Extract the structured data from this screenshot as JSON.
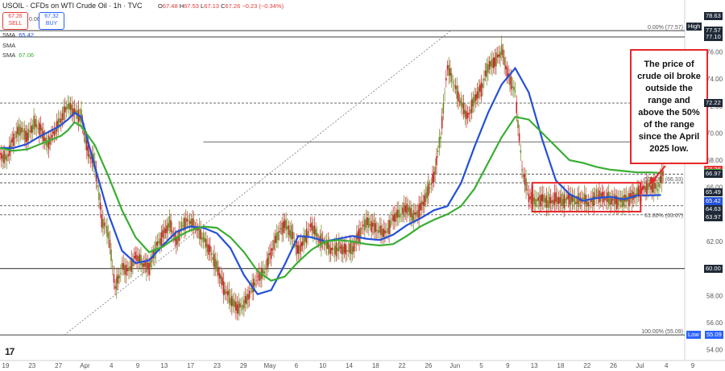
{
  "header": {
    "symbol": "USOIL · CFDs on WTI Crude Oil · 1h · TVC",
    "ohlc": {
      "o_label": "O",
      "o": "67.48",
      "h_label": "H",
      "h": "67.53",
      "l_label": "L",
      "l": "67.13",
      "c_label": "C",
      "c": "67.26",
      "change": "−0.23 (−0.34%)"
    },
    "sell": {
      "price": "67.26",
      "label": "SELL"
    },
    "buy": {
      "price": "67.32",
      "label": "BUY"
    },
    "spread": "0.06",
    "indicators": [
      {
        "name": "SMA",
        "value": "65.42"
      },
      {
        "name": "SMA",
        "value": ""
      },
      {
        "name": "SMA",
        "value": "67.06"
      }
    ]
  },
  "annotation": "The price of crude oil broke outside the range and above the 50% of the range since the April 2025 low.",
  "colors": {
    "fast_sma": "#2450d8",
    "slow_sma": "#3aad33",
    "candle_up": "#6e8c24",
    "candle_down": "#c8252c",
    "annotation": "#e8262a",
    "fib": "#777777"
  },
  "chart_data": {
    "type": "line",
    "title": "USOIL · CFDs on WTI Crude Oil · 1h · TVC",
    "ylim": [
      53.2,
      79.0
    ],
    "y_ticks": [
      54.0,
      56.0,
      58.0,
      60.0,
      62.0,
      64.0,
      66.0,
      68.0,
      70.0,
      72.0,
      74.0,
      76.0
    ],
    "y_tick_labels": [
      "54.00",
      "56.00",
      "58.00",
      "60.00",
      "62.00",
      "64.00",
      "66.00",
      "68.00",
      "70.00",
      "72.00",
      "74.00",
      "76.00"
    ],
    "x_ticks": [
      "19",
      "23",
      "27",
      "Apr",
      "4",
      "9",
      "13",
      "17",
      "23",
      "29",
      "May",
      "6",
      "10",
      "14",
      "18",
      "22",
      "26",
      "Jun",
      "5",
      "9",
      "13",
      "18",
      "22",
      "26",
      "Jul",
      "4",
      "9"
    ],
    "series": [
      {
        "name": "SMA",
        "style": "blue",
        "x": [
          0,
          2,
          4,
          6,
          8,
          9,
          10,
          11,
          12,
          14,
          16,
          18,
          20,
          22,
          24,
          26,
          28,
          30,
          32,
          34,
          36,
          38,
          40,
          42,
          44,
          46,
          48,
          50,
          52,
          54,
          56,
          58,
          60,
          62,
          64,
          66,
          68,
          70,
          72,
          74,
          76,
          78,
          80,
          82,
          84,
          86,
          88,
          90,
          92,
          94,
          96,
          97.5
        ],
        "y": [
          68.9,
          68.9,
          69.2,
          69.8,
          70.3,
          70.6,
          71.0,
          71.5,
          71.2,
          67.5,
          64.0,
          61.3,
          60.4,
          60.6,
          61.7,
          62.7,
          63.1,
          63.0,
          62.6,
          61.5,
          59.5,
          58.1,
          58.4,
          60.3,
          62.4,
          62.3,
          62.0,
          62.2,
          62.4,
          62.2,
          62.1,
          62.5,
          63.2,
          63.7,
          64.3,
          64.6,
          66.3,
          69.0,
          71.5,
          73.6,
          74.8,
          73.0,
          69.5,
          66.5,
          65.5,
          65.0,
          65.2,
          65.3,
          65.1,
          65.4,
          65.4,
          65.42
        ]
      },
      {
        "name": "SMA",
        "style": "green",
        "x": [
          0,
          2,
          4,
          6,
          8,
          9,
          10,
          11,
          12,
          14,
          16,
          18,
          20,
          22,
          24,
          26,
          28,
          30,
          32,
          34,
          36,
          38,
          40,
          42,
          44,
          46,
          48,
          50,
          52,
          54,
          56,
          58,
          60,
          62,
          64,
          66,
          68,
          70,
          72,
          74,
          76,
          78,
          80,
          82,
          84,
          86,
          88,
          90,
          92,
          94,
          96,
          97.5
        ],
        "y": [
          68.9,
          68.7,
          68.8,
          69.2,
          69.6,
          69.8,
          70.2,
          70.8,
          70.5,
          69.1,
          66.8,
          64.3,
          62.3,
          61.2,
          61.6,
          62.3,
          62.8,
          63.1,
          63.0,
          62.3,
          61.2,
          59.8,
          59.1,
          59.4,
          60.5,
          61.4,
          62.0,
          62.1,
          62.0,
          61.8,
          61.7,
          61.8,
          62.4,
          63.1,
          63.6,
          64.0,
          64.6,
          65.9,
          67.8,
          69.7,
          71.2,
          71.0,
          70.0,
          69.0,
          68.0,
          67.8,
          67.5,
          67.3,
          67.2,
          67.1,
          67.1,
          67.06
        ]
      },
      {
        "name": "Price",
        "style": "candles",
        "x": [
          0,
          1,
          2,
          3,
          4,
          5,
          6,
          7,
          8,
          9,
          10,
          11,
          12,
          13,
          14,
          15,
          16,
          17,
          18,
          19,
          20,
          21,
          22,
          23,
          24,
          25,
          26,
          27,
          28,
          29,
          30,
          31,
          32,
          33,
          34,
          35,
          36,
          37,
          38,
          39,
          40,
          41,
          42,
          43,
          44,
          45,
          46,
          47,
          48,
          49,
          50,
          51,
          52,
          53,
          54,
          55,
          56,
          57,
          58,
          59,
          60,
          61,
          62,
          63,
          64,
          65,
          66,
          67,
          68,
          69,
          70,
          71,
          72,
          73,
          74,
          75,
          76,
          77,
          78,
          79,
          80,
          81,
          82,
          83,
          84,
          85,
          86,
          87,
          88,
          89,
          90,
          91,
          92,
          93,
          94,
          95,
          96,
          97,
          98
        ],
        "y": [
          68.4,
          68.2,
          69.6,
          70.3,
          69.6,
          70.7,
          70.3,
          69.2,
          70.1,
          71.0,
          72.0,
          71.5,
          71.2,
          68.6,
          67.8,
          63.6,
          62.5,
          58.5,
          60.1,
          59.9,
          61.0,
          60.4,
          60.0,
          61.5,
          62.4,
          63.4,
          62.0,
          63.3,
          63.5,
          62.9,
          62.2,
          61.3,
          60.2,
          58.6,
          57.7,
          57.0,
          57.3,
          58.4,
          59.4,
          59.8,
          61.2,
          62.5,
          63.2,
          62.6,
          61.3,
          62.3,
          63.2,
          62.1,
          61.8,
          61.3,
          61.6,
          61.4,
          61.5,
          62.5,
          63.4,
          63.1,
          62.8,
          62.7,
          63.8,
          64.0,
          64.4,
          63.8,
          64.4,
          65.6,
          66.8,
          69.8,
          74.9,
          73.5,
          72.2,
          71.2,
          72.6,
          73.3,
          74.9,
          75.2,
          76.1,
          74.2,
          73.1,
          67.4,
          65.3,
          64.9,
          65.1,
          64.9,
          65.2,
          65.0,
          65.2,
          64.9,
          65.1,
          64.8,
          65.5,
          65.3,
          65.1,
          64.9,
          65.0,
          65.2,
          65.6,
          66.0,
          66.1,
          65.9,
          67.26
        ]
      }
    ],
    "reference_lines": [
      {
        "label": "",
        "value": 77.57
      },
      {
        "label": "",
        "value": 77.1
      },
      {
        "label": "",
        "value": 72.22
      },
      {
        "label": "",
        "value": 69.35
      },
      {
        "label": "",
        "value": 66.97
      },
      {
        "label": "",
        "value": 66.33
      },
      {
        "label": "",
        "value": 64.63
      },
      {
        "label": "",
        "value": 63.97
      },
      {
        "label": "",
        "value": 60.0
      },
      {
        "label": "",
        "value": 55.09
      }
    ],
    "fib_levels": [
      {
        "label": "0.00% (77.57)",
        "value": 77.57
      },
      {
        "label": "50.00% (66.33)",
        "value": 66.33
      },
      {
        "label": "61.80% (63.67)",
        "value": 63.67
      },
      {
        "label": "100.00% (55.09)",
        "value": 55.09
      }
    ],
    "range_box": {
      "x0": 78.5,
      "x1": 94.5,
      "y_low": 64.2,
      "y_high": 66.33
    },
    "trend_line": {
      "x0": 9.5,
      "y0": 55.09,
      "x1": 66.5,
      "y1": 77.57
    },
    "price_tags": [
      {
        "label": "78.63",
        "value": 78.63,
        "color": "#1f2937"
      },
      {
        "label": "High",
        "value": 77.9,
        "color": "#1f2937"
      },
      {
        "label": "77.57",
        "value": 77.57,
        "color": "#1f2937"
      },
      {
        "label": "77.10",
        "value": 77.1,
        "color": "#1f2937"
      },
      {
        "label": "72.22",
        "value": 72.22,
        "color": "#1f2937"
      },
      {
        "label": "67.26",
        "value": 67.26,
        "color": "#e53935"
      },
      {
        "label": "67.06",
        "value": 67.06,
        "color": "#3aad33"
      },
      {
        "label": "66.97",
        "value": 66.97,
        "color": "#1f2937"
      },
      {
        "label": "65.49",
        "value": 65.6,
        "color": "#1f2937"
      },
      {
        "label": "65.42",
        "value": 65.0,
        "color": "#2450d8"
      },
      {
        "label": "64.63",
        "value": 64.4,
        "color": "#1f2937"
      },
      {
        "label": "63.97",
        "value": 63.8,
        "color": "#1f2937"
      },
      {
        "label": "60.00",
        "value": 60.0,
        "color": "#1f2937"
      },
      {
        "label": "Low",
        "value": 55.09,
        "color": "#2962ff"
      },
      {
        "label": "55.09",
        "value": 55.09,
        "color": "#2962ff"
      }
    ]
  }
}
